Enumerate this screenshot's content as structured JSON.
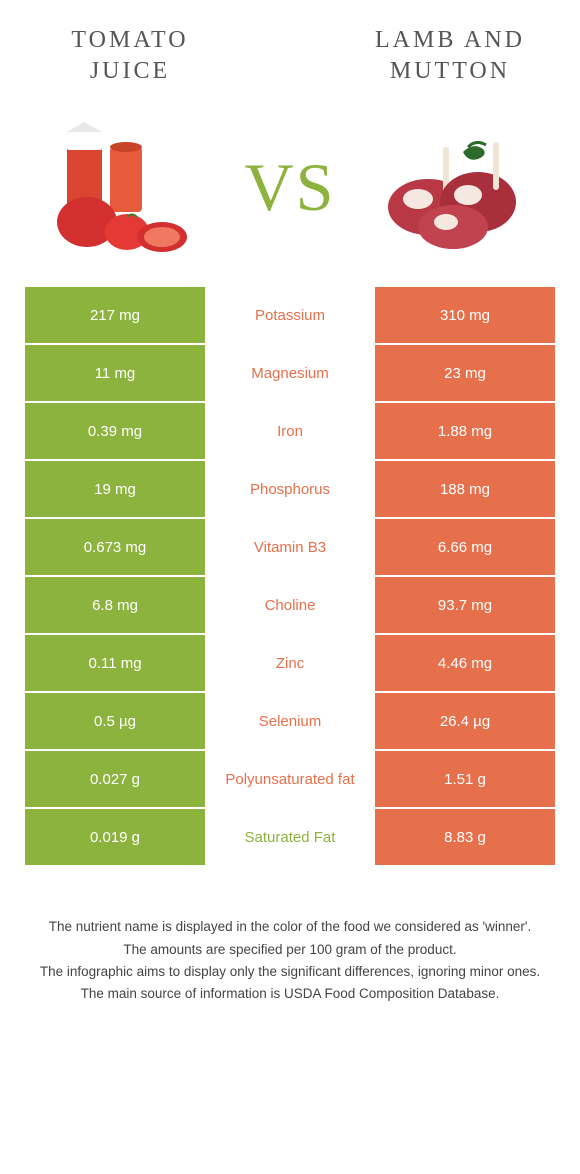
{
  "colors": {
    "left": "#8db33f",
    "right": "#e6704b",
    "background": "#ffffff",
    "text": "#333333"
  },
  "typography": {
    "title_fontsize": 24,
    "title_letter_spacing": 3,
    "vs_fontsize": 68,
    "cell_fontsize": 15,
    "footnote_fontsize": 13.5
  },
  "left_food": {
    "title": "TOMATO JUICE"
  },
  "right_food": {
    "title": "LAMB AND MUTTON"
  },
  "vs_label": "VS",
  "rows": [
    {
      "left": "217 mg",
      "label": "Potassium",
      "right": "310 mg",
      "winner": "right"
    },
    {
      "left": "11 mg",
      "label": "Magnesium",
      "right": "23 mg",
      "winner": "right"
    },
    {
      "left": "0.39 mg",
      "label": "Iron",
      "right": "1.88 mg",
      "winner": "right"
    },
    {
      "left": "19 mg",
      "label": "Phosphorus",
      "right": "188 mg",
      "winner": "right"
    },
    {
      "left": "0.673 mg",
      "label": "Vitamin B3",
      "right": "6.66 mg",
      "winner": "right"
    },
    {
      "left": "6.8 mg",
      "label": "Choline",
      "right": "93.7 mg",
      "winner": "right"
    },
    {
      "left": "0.11 mg",
      "label": "Zinc",
      "right": "4.46 mg",
      "winner": "right"
    },
    {
      "left": "0.5 µg",
      "label": "Selenium",
      "right": "26.4 µg",
      "winner": "right"
    },
    {
      "left": "0.027 g",
      "label": "Polyunsaturated fat",
      "right": "1.51 g",
      "winner": "right"
    },
    {
      "left": "0.019 g",
      "label": "Saturated Fat",
      "right": "8.83 g",
      "winner": "left"
    }
  ],
  "footnotes": [
    "The nutrient name is displayed in the color of the food we considered as 'winner'.",
    "The amounts are specified per 100 gram of the product.",
    "The infographic aims to display only the significant differences, ignoring minor ones.",
    "The main source of information is USDA Food Composition Database."
  ]
}
